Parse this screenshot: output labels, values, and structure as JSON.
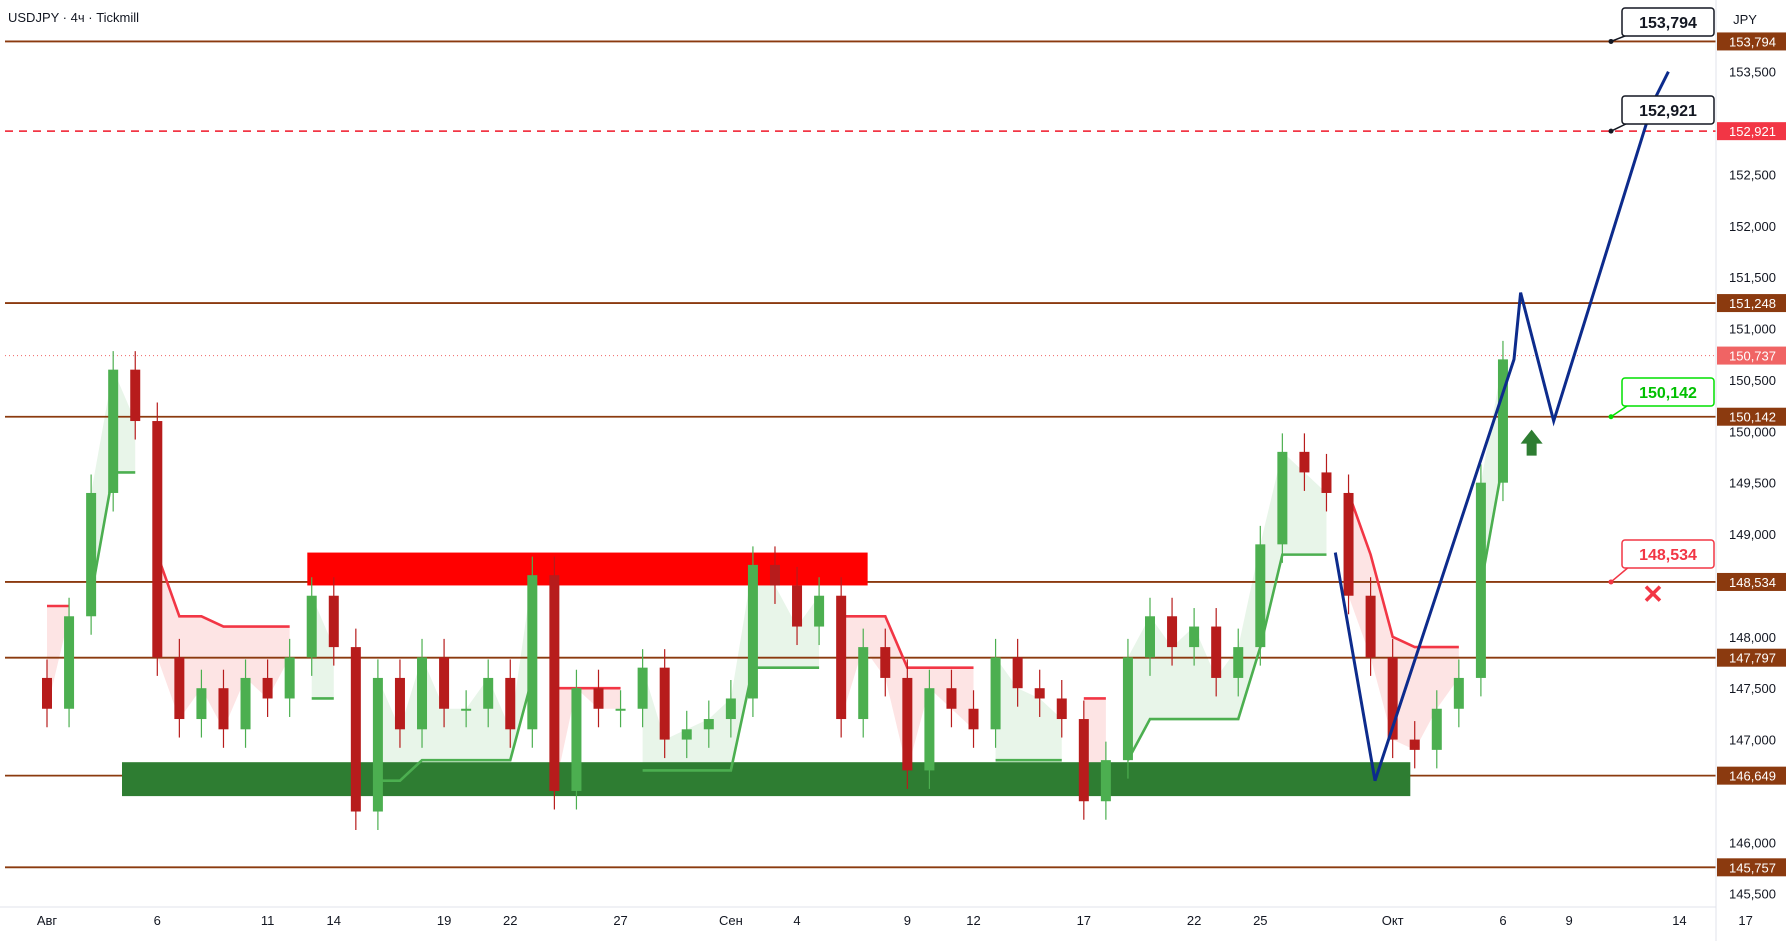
{
  "header": {
    "symbol": "USDJPY",
    "timeframe": "4ч",
    "broker": "Tickmill",
    "currency": "JPY"
  },
  "colors": {
    "level_line": "#8B3A0F",
    "level_label_bg": "#8B3A0F",
    "bull_candle": "#4caf50",
    "bear_candle": "#b71c1c",
    "support_zone": "#2e7d32",
    "resistance_zone": "#ff0000",
    "trail_green": "#4caf50",
    "trail_red": "#f23645",
    "fill_green": "#e8f5e9",
    "fill_red": "#fde4e4",
    "forecast_path": "#0d2b8c",
    "dashed_target": "#f23645",
    "current_price_bg": "#f06464"
  },
  "callouts": [
    {
      "label": "153,794",
      "style": "black"
    },
    {
      "label": "152,921",
      "style": "black"
    },
    {
      "label": "150,142",
      "style": "green"
    },
    {
      "label": "148,534",
      "style": "red"
    }
  ],
  "markers": [
    {
      "type": "arrow-up",
      "color": "#2e7d32"
    },
    {
      "type": "cross",
      "color": "#f23645"
    }
  ],
  "chart_data": {
    "type": "candlestick",
    "symbol": "USDJPY",
    "title": "USDJPY · 4ч · Tickmill",
    "ylim": [
      145.4,
      154.1
    ],
    "y_ticks": [
      {
        "value": 153.5,
        "label": "153,500"
      },
      {
        "value": 152.5,
        "label": "152,500"
      },
      {
        "value": 152.0,
        "label": "152,000"
      },
      {
        "value": 151.5,
        "label": "151,500"
      },
      {
        "value": 151.0,
        "label": "151,000"
      },
      {
        "value": 150.5,
        "label": "150,500"
      },
      {
        "value": 150.0,
        "label": "150,000"
      },
      {
        "value": 149.5,
        "label": "149,500"
      },
      {
        "value": 149.0,
        "label": "149,000"
      },
      {
        "value": 148.0,
        "label": "148,000"
      },
      {
        "value": 147.5,
        "label": "147,500"
      },
      {
        "value": 147.0,
        "label": "147,000"
      },
      {
        "value": 146.0,
        "label": "146,000"
      },
      {
        "value": 145.5,
        "label": "145,500"
      }
    ],
    "x_ticks": [
      {
        "x": 0,
        "label": "Авг"
      },
      {
        "x": 5,
        "label": "6"
      },
      {
        "x": 10,
        "label": "11"
      },
      {
        "x": 13,
        "label": "14"
      },
      {
        "x": 18,
        "label": "19"
      },
      {
        "x": 21,
        "label": "22"
      },
      {
        "x": 26,
        "label": "27"
      },
      {
        "x": 31,
        "label": "Сен"
      },
      {
        "x": 34,
        "label": "4"
      },
      {
        "x": 39,
        "label": "9"
      },
      {
        "x": 42,
        "label": "12"
      },
      {
        "x": 47,
        "label": "17"
      },
      {
        "x": 52,
        "label": "22"
      },
      {
        "x": 55,
        "label": "25"
      },
      {
        "x": 61,
        "label": "Окт"
      },
      {
        "x": 66,
        "label": "6"
      },
      {
        "x": 69,
        "label": "9"
      },
      {
        "x": 74,
        "label": "14"
      },
      {
        "x": 77,
        "label": "17"
      }
    ],
    "levels": [
      {
        "value": 153.794,
        "label": "153,794",
        "style": "solid"
      },
      {
        "value": 152.921,
        "label": "152,921",
        "style": "dashed"
      },
      {
        "value": 151.248,
        "label": "151,248",
        "style": "solid"
      },
      {
        "value": 150.142,
        "label": "150,142",
        "style": "solid"
      },
      {
        "value": 148.534,
        "label": "148,534",
        "style": "solid"
      },
      {
        "value": 147.797,
        "label": "147,797",
        "style": "solid"
      },
      {
        "value": 146.649,
        "label": "146,649",
        "style": "solid"
      },
      {
        "value": 145.757,
        "label": "145,757",
        "style": "solid"
      }
    ],
    "current_price": {
      "value": 150.737,
      "label": "150,737"
    },
    "zones": [
      {
        "name": "resistance",
        "x": [
          11.8,
          37.2
        ],
        "y": [
          148.5,
          148.82
        ]
      },
      {
        "name": "support",
        "x": [
          3.4,
          61.8
        ],
        "y": [
          146.45,
          146.78
        ]
      }
    ],
    "forecast_path": [
      {
        "x": 58.4,
        "y": 148.82
      },
      {
        "x": 60.2,
        "y": 146.6
      },
      {
        "x": 66.5,
        "y": 150.7
      },
      {
        "x": 66.8,
        "y": 151.35
      },
      {
        "x": 68.3,
        "y": 150.1
      },
      {
        "x": 72.8,
        "y": 153.2
      },
      {
        "x": 73.5,
        "y": 153.5
      }
    ],
    "series": [
      {
        "name": "close",
        "values": [
          147.3,
          148.2,
          149.4,
          150.6,
          150.1,
          147.8,
          147.2,
          147.5,
          147.1,
          147.6,
          147.4,
          147.8,
          148.4,
          147.9,
          146.3,
          147.6,
          147.1,
          147.8,
          147.3,
          147.3,
          147.6,
          147.1,
          148.6,
          146.5,
          147.5,
          147.3,
          147.3,
          147.7,
          147.0,
          147.1,
          147.2,
          147.4,
          148.7,
          148.5,
          148.1,
          148.4,
          147.2,
          147.9,
          147.6,
          146.7,
          147.5,
          147.3,
          147.1,
          147.8,
          147.5,
          147.4,
          147.2,
          146.4,
          146.8,
          147.8,
          148.2,
          147.9,
          148.1,
          147.6,
          147.9,
          148.9,
          149.8,
          149.6,
          149.4,
          148.4,
          147.8,
          147.0,
          146.9,
          147.3,
          147.6,
          149.5,
          150.7
        ]
      }
    ]
  }
}
